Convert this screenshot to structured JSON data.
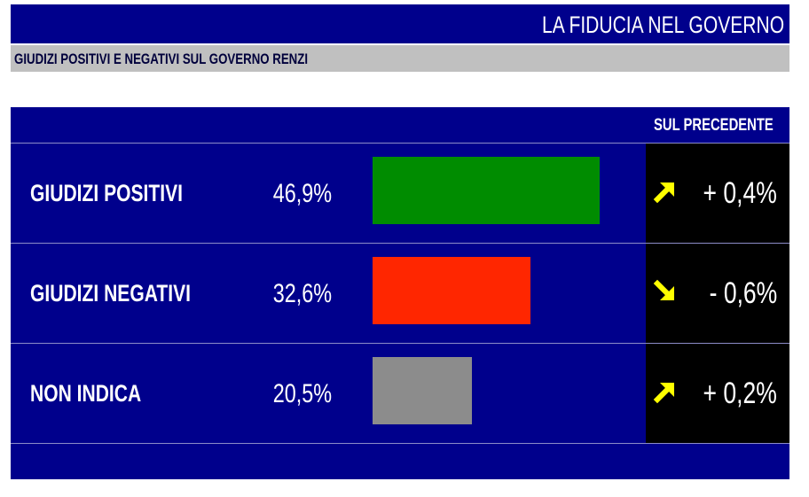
{
  "header": {
    "title": "LA FIDUCIA NEL GOVERNO"
  },
  "subtitle": "GIUDIZI POSITIVI E NEGATIVI SUL GOVERNO RENZI",
  "column_header": "SUL PRECEDENTE",
  "rows": [
    {
      "label": "GIUDIZI POSITIVI",
      "value_text": "46,9%",
      "change_text": "+ 0,4%",
      "direction": "up",
      "color": "#008c00"
    },
    {
      "label": "GIUDIZI NEGATIVI",
      "value_text": "32,6%",
      "change_text": "- 0,6%",
      "direction": "down",
      "color": "#ff2600"
    },
    {
      "label": "NON INDICA",
      "value_text": "20,5%",
      "change_text": "+ 0,2%",
      "direction": "up",
      "color": "#8c8c8c"
    }
  ],
  "colors": {
    "background_panel": "#00008c",
    "header_strip": "#c0c0c0",
    "arrow": "#ffff00"
  },
  "chart_data": {
    "type": "bar",
    "title": "LA FIDUCIA NEL GOVERNO",
    "subtitle": "GIUDIZI POSITIVI E NEGATIVI SUL GOVERNO RENZI",
    "categories": [
      "GIUDIZI POSITIVI",
      "GIUDIZI NEGATIVI",
      "NON INDICA"
    ],
    "values": [
      46.9,
      32.6,
      20.5
    ],
    "changes": [
      0.4,
      -0.6,
      0.2
    ],
    "change_label": "SUL PRECEDENTE",
    "orientation": "horizontal",
    "unit": "%"
  }
}
